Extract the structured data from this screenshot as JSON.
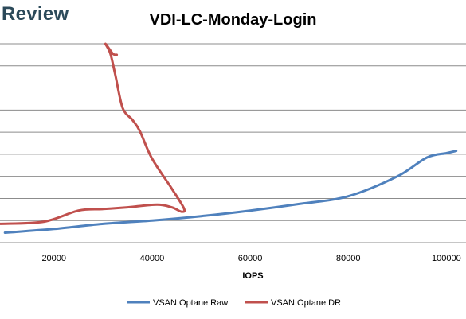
{
  "header": {
    "brand": "Review"
  },
  "chart_data": {
    "type": "line",
    "title": "VDI-LC-Monday-Login",
    "xlabel": "IOPS",
    "ylabel": "",
    "xlim": [
      9000,
      104000
    ],
    "ylim": [
      0,
      9
    ],
    "x_ticks": [
      20000,
      40000,
      60000,
      80000,
      100000
    ],
    "grid": true,
    "legend": "bottom",
    "series": [
      {
        "name": "VSAN Optane Raw",
        "color": "#4f81bd",
        "points": [
          [
            10000,
            0.45
          ],
          [
            20000,
            0.62
          ],
          [
            30000,
            0.85
          ],
          [
            40000,
            1.0
          ],
          [
            50000,
            1.2
          ],
          [
            60000,
            1.45
          ],
          [
            70000,
            1.75
          ],
          [
            80000,
            2.1
          ],
          [
            90000,
            3.0
          ],
          [
            96000,
            3.85
          ],
          [
            100000,
            4.05
          ],
          [
            102000,
            4.15
          ]
        ]
      },
      {
        "name": "VSAN Optane DR",
        "color": "#c0504d",
        "points": [
          [
            9000,
            0.85
          ],
          [
            18000,
            0.95
          ],
          [
            25000,
            1.45
          ],
          [
            30000,
            1.52
          ],
          [
            35000,
            1.6
          ],
          [
            41000,
            1.72
          ],
          [
            44000,
            1.6
          ],
          [
            46000,
            1.4
          ],
          [
            46500,
            1.55
          ],
          [
            44000,
            2.45
          ],
          [
            40000,
            3.8
          ],
          [
            37500,
            5.05
          ],
          [
            36000,
            5.55
          ],
          [
            34000,
            6.1
          ],
          [
            32500,
            7.6
          ],
          [
            31500,
            8.55
          ],
          [
            30500,
            9.0
          ],
          [
            32000,
            8.55
          ],
          [
            32800,
            8.5
          ]
        ]
      }
    ]
  }
}
